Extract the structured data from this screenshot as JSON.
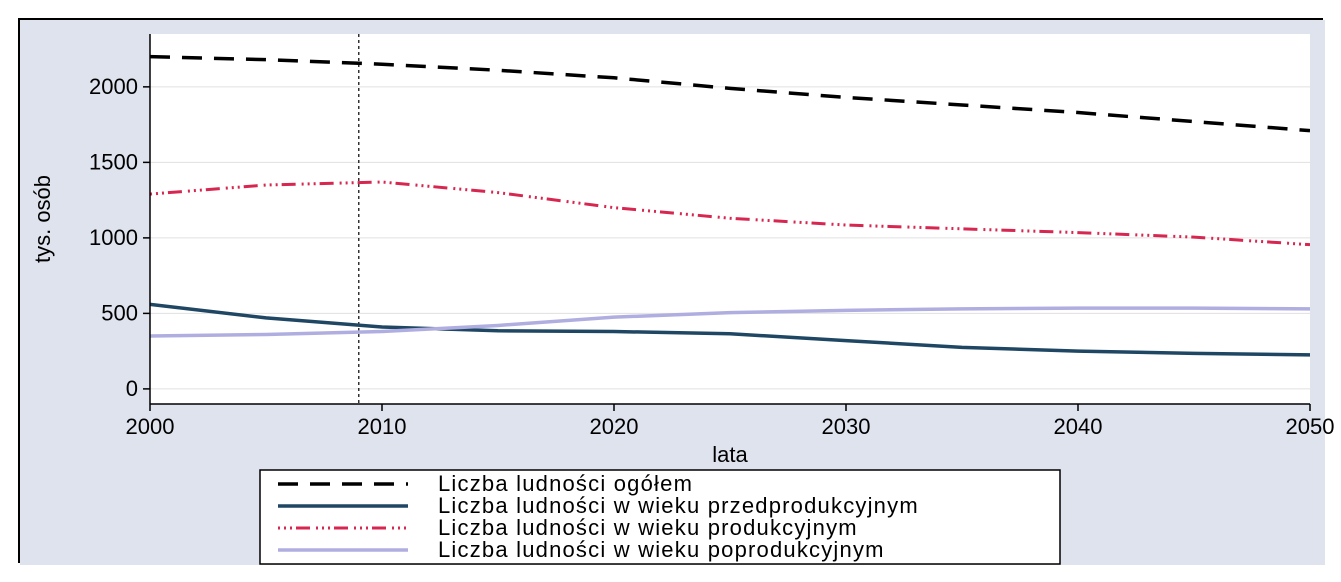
{
  "chart": {
    "type": "line",
    "background_color": "#dfe3ee",
    "plot_background_color": "#ffffff",
    "panel_border_color": "#000000",
    "grid_color": "#e0e0e0",
    "axis_line_color": "#000000",
    "tick_color": "#000000",
    "label_fontsize": 22,
    "tick_fontsize": 22,
    "legend_fontsize": 22,
    "x": {
      "label": "lata",
      "lim": [
        2000,
        2050
      ],
      "ticks": [
        2000,
        2010,
        2020,
        2030,
        2040,
        2050
      ]
    },
    "y": {
      "label": "tys. osób",
      "lim": [
        -100,
        2350
      ],
      "ticks": [
        0,
        500,
        1000,
        1500,
        2000
      ]
    },
    "reference_line": {
      "x": 2009,
      "color": "#000000",
      "dash": "3,3",
      "width": 1.2
    },
    "series": [
      {
        "name": "Liczba ludności ogółem",
        "color": "#000000",
        "width": 3.5,
        "dash": "20,12",
        "x": [
          2000,
          2005,
          2010,
          2015,
          2020,
          2025,
          2030,
          2035,
          2040,
          2045,
          2050
        ],
        "y": [
          2200,
          2180,
          2150,
          2110,
          2060,
          1990,
          1930,
          1880,
          1830,
          1770,
          1710
        ]
      },
      {
        "name": "Liczba ludności w wieku przedprodukcyjnym",
        "color": "#1f4764",
        "width": 3.5,
        "dash": "none",
        "x": [
          2000,
          2005,
          2010,
          2015,
          2020,
          2025,
          2030,
          2035,
          2040,
          2045,
          2050
        ],
        "y": [
          560,
          470,
          410,
          385,
          380,
          365,
          320,
          275,
          250,
          235,
          225
        ]
      },
      {
        "name": "Liczba ludności w wieku produkcyjnym",
        "color": "#d7264f",
        "width": 3,
        "dash": "2,4,2,4,2,4,14,6",
        "x": [
          2000,
          2005,
          2010,
          2015,
          2020,
          2025,
          2030,
          2035,
          2040,
          2045,
          2050
        ],
        "y": [
          1290,
          1350,
          1370,
          1300,
          1200,
          1130,
          1085,
          1060,
          1035,
          1005,
          955
        ]
      },
      {
        "name": "Liczba ludności w wieku poprodukcyjnym",
        "color": "#b0aee0",
        "width": 3.5,
        "dash": "none",
        "x": [
          2000,
          2005,
          2010,
          2015,
          2020,
          2025,
          2030,
          2035,
          2040,
          2045,
          2050
        ],
        "y": [
          350,
          360,
          380,
          420,
          475,
          505,
          520,
          530,
          535,
          535,
          530
        ]
      }
    ],
    "legend": {
      "border_color": "#000000",
      "background_color": "#ffffff"
    }
  }
}
